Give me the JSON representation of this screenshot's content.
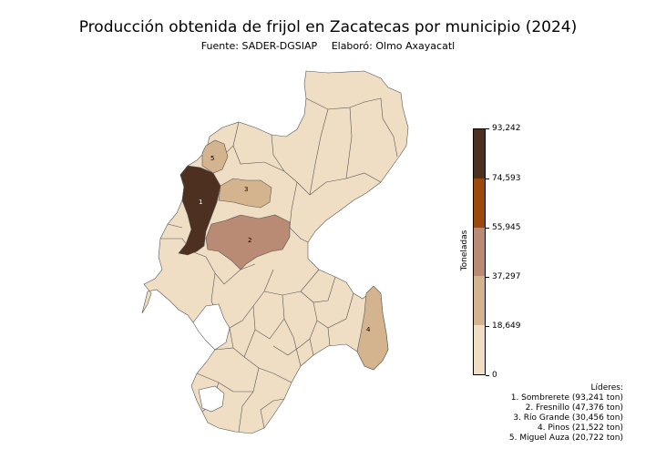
{
  "title": "Producción obtenida de frijol en Zacatecas por municipio (2024)",
  "source": "Fuente: SADER-DGSIAP",
  "author": "Elaboró: Olmo Axayacatl",
  "colorbar": {
    "label": "Toneladas",
    "ticks": [
      "0",
      "18,649",
      "37,297",
      "55,945",
      "74,593",
      "93,242"
    ],
    "colors": [
      "#efdec4",
      "#d4b48e",
      "#b98a74",
      "#9b4a0c",
      "#4e3020"
    ]
  },
  "map_colors": {
    "base": "#efdec4",
    "border": "#555555",
    "nodata": "#ffffff",
    "rank1": "#4e3020",
    "rank2": "#b98a74",
    "rank3": "#d4b48e",
    "rank4": "#d4b48e",
    "rank5": "#d4b48e"
  },
  "leaders": {
    "heading": "Líderes:",
    "items": [
      "1. Sombrerete (93,241 ton)",
      "2. Fresnillo (47,376 ton)",
      "3. Río Grande (30,456 ton)",
      "4. Pinos (21,522 ton)",
      "5. Miguel Auza (20,722 ton)"
    ]
  },
  "labels": [
    "1",
    "2",
    "3",
    "4",
    "5"
  ]
}
